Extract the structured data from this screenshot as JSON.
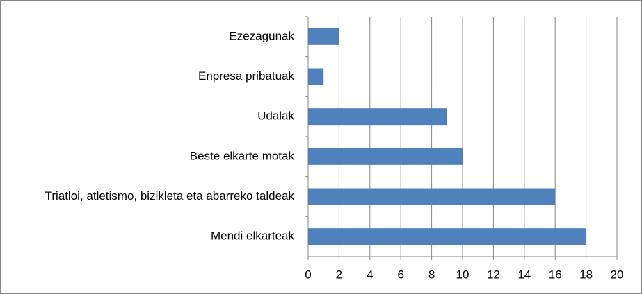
{
  "chart_data": {
    "type": "bar",
    "orientation": "horizontal",
    "categories": [
      "Ezezagunak",
      "Enpresa pribatuak",
      "Udalak",
      "Beste elkarte motak",
      "Triatloi, atletismo, bizikleta eta abarreko taldeak",
      "Mendi elkarteak"
    ],
    "values": [
      2,
      1,
      9,
      10,
      16,
      18
    ],
    "color": "#4f81bd",
    "xlim": [
      0,
      20
    ],
    "xticks": [
      0,
      2,
      4,
      6,
      8,
      10,
      12,
      14,
      16,
      18,
      20
    ],
    "grid": true
  }
}
